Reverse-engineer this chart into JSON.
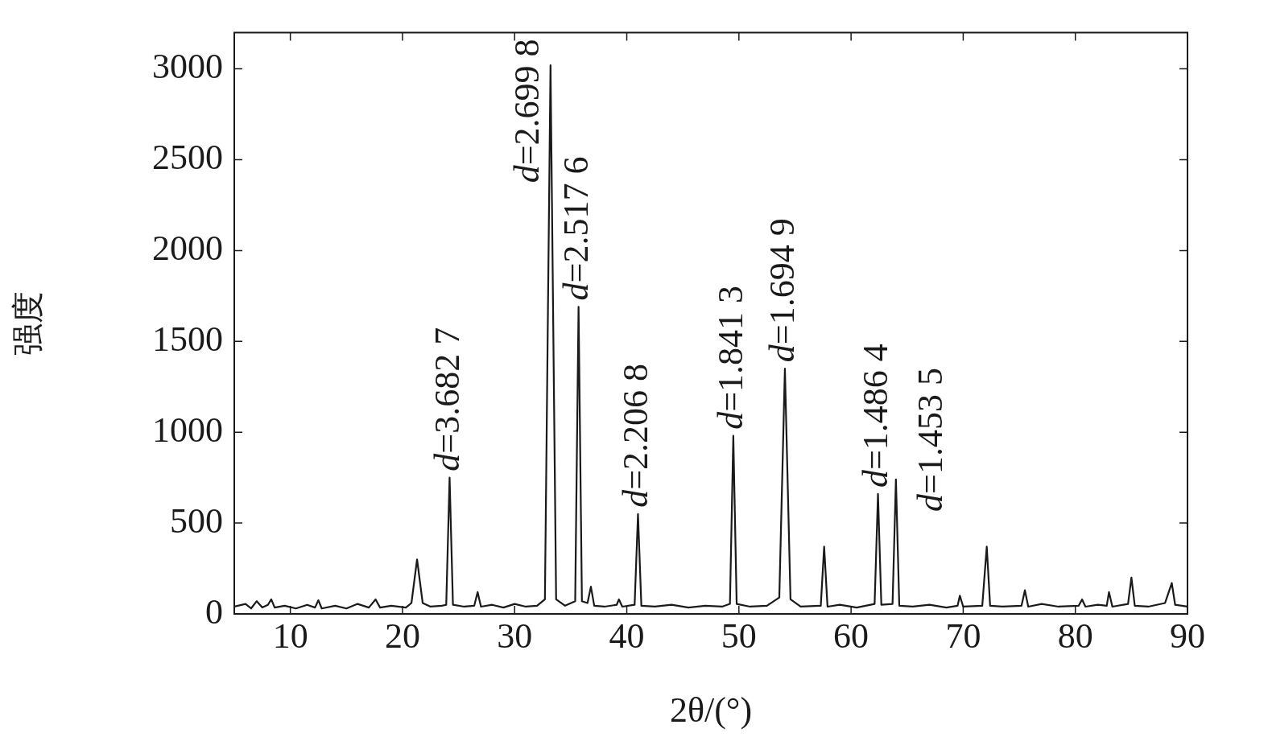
{
  "chart_data": {
    "type": "line",
    "xlabel": "2θ/(°)",
    "ylabel": "强度",
    "xlim": [
      5,
      90
    ],
    "xticks": [
      10,
      20,
      30,
      40,
      50,
      60,
      70,
      80,
      90
    ],
    "ylim": [
      0,
      3200
    ],
    "yticks": [
      0,
      500,
      1000,
      1500,
      2000,
      2500,
      3000
    ],
    "grid": false,
    "legend": false,
    "marker": "none",
    "line_style": "solid",
    "series": [
      {
        "color": "#1a1a1a",
        "x": [
          5,
          6,
          6.5,
          7,
          7.5,
          8,
          8.3,
          8.6,
          9.5,
          10.5,
          11.5,
          12.2,
          12.5,
          12.8,
          14,
          15,
          16,
          17,
          17.6,
          18,
          19,
          20.3,
          20.8,
          21.3,
          21.8,
          22.5,
          23.5,
          23.9,
          24.2,
          24.5,
          25.5,
          26.4,
          26.7,
          27,
          28,
          29,
          30,
          31,
          32,
          32.7,
          33.2,
          33.7,
          34.5,
          35.4,
          35.7,
          36,
          36.5,
          36.8,
          37.1,
          38,
          39.1,
          39.3,
          39.6,
          40.7,
          41,
          41.3,
          42.5,
          44,
          45.5,
          47,
          48.5,
          49.2,
          49.5,
          49.8,
          51,
          52.5,
          53.6,
          54.1,
          54.6,
          55.5,
          57.3,
          57.6,
          57.9,
          59,
          60.5,
          62.1,
          62.4,
          62.7,
          63.7,
          64,
          64.3,
          65.5,
          67,
          68.5,
          69.5,
          69.7,
          70,
          71.7,
          72.1,
          72.4,
          73.5,
          75.2,
          75.5,
          75.8,
          77,
          78.5,
          80.3,
          80.6,
          80.9,
          82,
          82.8,
          83,
          83.3,
          84.7,
          85,
          85.3,
          86.5,
          88,
          88.6,
          88.9,
          90
        ],
        "values": [
          40,
          55,
          30,
          70,
          35,
          50,
          80,
          35,
          45,
          30,
          50,
          35,
          75,
          30,
          45,
          30,
          55,
          35,
          80,
          35,
          45,
          35,
          60,
          300,
          60,
          40,
          45,
          50,
          750,
          50,
          40,
          45,
          120,
          40,
          50,
          35,
          55,
          40,
          45,
          80,
          3020,
          80,
          45,
          70,
          1690,
          70,
          60,
          150,
          45,
          40,
          50,
          80,
          40,
          50,
          550,
          45,
          40,
          50,
          35,
          45,
          40,
          55,
          980,
          55,
          40,
          45,
          90,
          1350,
          80,
          40,
          45,
          370,
          40,
          50,
          35,
          55,
          660,
          50,
          55,
          740,
          45,
          40,
          50,
          35,
          45,
          100,
          40,
          45,
          370,
          45,
          40,
          45,
          130,
          40,
          55,
          40,
          45,
          80,
          40,
          50,
          45,
          120,
          40,
          55,
          200,
          45,
          40,
          60,
          170,
          50,
          40
        ]
      }
    ],
    "annotations": [
      {
        "text": "d=3.682 7",
        "x": 24.2,
        "y": 750
      },
      {
        "text": "d=2.699 8",
        "x": 33.2,
        "y": 3020
      },
      {
        "text": "d=2.517 6",
        "x": 35.7,
        "y": 1690
      },
      {
        "text": "d=2.206 8",
        "x": 41,
        "y": 550
      },
      {
        "text": "d=1.841 3",
        "x": 49.5,
        "y": 980
      },
      {
        "text": "d=1.694 9",
        "x": 54.1,
        "y": 1350
      },
      {
        "text": "d=1.486 4",
        "x": 62.4,
        "y": 660
      },
      {
        "text": "d=1.453 5",
        "x": 64,
        "y": 740
      }
    ]
  }
}
